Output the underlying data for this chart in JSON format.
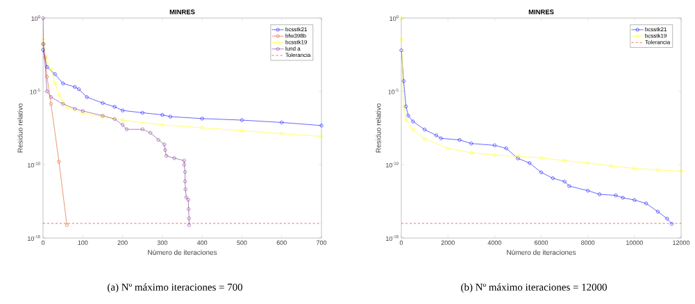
{
  "chart_data": [
    {
      "type": "line",
      "title": "MINRES",
      "xlabel": "Número de iteraciones",
      "ylabel": "Residuo relativo",
      "log": "y",
      "marker": "circle",
      "line_style": "solid",
      "legend": "top right",
      "xlim": [
        0,
        700
      ],
      "xticks": [
        0,
        100,
        200,
        300,
        400,
        500,
        600,
        700
      ],
      "ylim": [
        1e-15,
        1
      ],
      "yticks": [
        {
          "value": 1e-15,
          "label": "10$^{-15}$"
        },
        {
          "value": 1e-10,
          "label": "10$^{-10}$"
        },
        {
          "value": 1e-05,
          "label": "10$^{-5}$"
        },
        {
          "value": 1,
          "label": "10$^{0}$"
        }
      ],
      "series": [
        {
          "name": "bcsstk21",
          "color": "#0000ff",
          "x": [
            0,
            10,
            30,
            50,
            80,
            90,
            110,
            150,
            180,
            200,
            250,
            300,
            320,
            400,
            500,
            600,
            700
          ],
          "values": [
            0.0068,
            0.00045,
            0.00015,
            3.5e-05,
            2e-05,
            1.4e-05,
            4.1e-06,
            1.6e-06,
            8.9e-07,
            5e-07,
            3.5e-07,
            2.5e-07,
            1.9e-07,
            1.4e-07,
            1.1e-07,
            7.6e-08,
            4.7e-08
          ]
        },
        {
          "name": "bfw398b",
          "color": "#d95319",
          "x": [
            0,
            5,
            10,
            20,
            40,
            60
          ],
          "values": [
            0.017,
            0.002,
            0.0001,
            1.4e-06,
            1.6e-10,
            7.6e-15
          ]
        },
        {
          "name": "bcsstk19",
          "color": "#ffff00",
          "x": [
            0,
            10,
            20,
            30,
            40,
            50,
            60,
            100,
            150,
            200,
            300,
            400,
            500,
            600,
            700
          ],
          "values": [
            0.037,
            0.00093,
            0.00032,
            3.5e-05,
            5.8e-06,
            2e-06,
            7.9e-07,
            3.2e-07,
            1.9e-07,
            1.1e-07,
            5.2e-08,
            3.3e-08,
            2.1e-08,
            1.3e-08,
            8.5e-09
          ]
        },
        {
          "name": "lund a",
          "color": "#7e2f8e",
          "x": [
            0,
            1,
            10,
            20,
            50,
            80,
            100,
            150,
            180,
            200,
            210,
            250,
            270,
            290,
            305,
            307,
            310,
            330,
            355,
            355,
            357,
            357,
            358,
            360,
            365,
            366,
            367,
            367
          ],
          "values": [
            1,
            0.017,
            1e-05,
            4.1e-06,
            1.4e-06,
            6.6e-07,
            4.6e-07,
            2.2e-07,
            1.3e-07,
            5.2e-08,
            2.6e-08,
            2.6e-08,
            1.5e-08,
            5e-09,
            2.4e-09,
            1e-09,
            4e-10,
            2.8e-10,
            1.9e-10,
            1e-10,
            3.2e-11,
            7.4e-12,
            2.1e-12,
            5.9e-13,
            4.1e-13,
            9.5e-14,
            2.2e-14,
            7.6e-15
          ]
        }
      ],
      "ref_lines": [
        {
          "axis": "y",
          "value": 1e-14,
          "label": "Tolerancia",
          "color": "#ff0000",
          "line_style": "dashed"
        }
      ],
      "annotations": [
        "(a) Nº máximo iteraciones = 700"
      ]
    },
    {
      "type": "line",
      "title": "MINRES",
      "xlabel": "Número de iteraciones",
      "ylabel": "Residuo relativo",
      "log": "y",
      "marker": "circle",
      "line_style": "solid",
      "legend": "top right",
      "xlim": [
        0,
        12000
      ],
      "xticks": [
        0,
        2000,
        4000,
        6000,
        8000,
        10000,
        12000
      ],
      "ylim": [
        1e-15,
        1
      ],
      "yticks": [
        {
          "value": 1e-15,
          "label": "10$^{-15}$"
        },
        {
          "value": 1e-10,
          "label": "10$^{-10}$"
        },
        {
          "value": 1e-05,
          "label": "10$^{-5}$"
        },
        {
          "value": 1,
          "label": "10$^{0}$"
        }
      ],
      "series": [
        {
          "name": "bcsstk21",
          "color": "#0000ff",
          "x": [
            0,
            100,
            200,
            300,
            500,
            1000,
            1500,
            1700,
            2500,
            3000,
            4000,
            4500,
            5000,
            5500,
            6000,
            6500,
            7000,
            7200,
            8000,
            8500,
            9200,
            9500,
            10000,
            10500,
            11000,
            11400,
            11600
          ],
          "values": [
            0.0063,
            5e-05,
            9.3e-07,
            2.2e-07,
            8.9e-08,
            2.5e-08,
            1e-08,
            6.3e-09,
            4.9e-09,
            2.8e-09,
            2.1e-09,
            1.3e-09,
            2.7e-10,
            1.3e-10,
            3e-11,
            1.2e-11,
            7.1e-12,
            3.5e-12,
            1.7e-12,
            9.6e-13,
            8.1e-13,
            5.6e-13,
            3.9e-13,
            2.3e-13,
            6.3e-14,
            2.1e-14,
            9.3e-15
          ]
        },
        {
          "name": "bcsstk19",
          "color": "#ffff00",
          "x": [
            0,
            10,
            100,
            200,
            500,
            1000,
            2000,
            3000,
            4000,
            5000,
            6000,
            7000,
            8000,
            9000,
            10000,
            11000,
            12000
          ],
          "values": [
            1,
            0.035,
            9.3e-07,
            1.1e-07,
            2.5e-08,
            5.8e-09,
            1.3e-09,
            6.6e-10,
            4.6e-10,
            3.8e-10,
            2.9e-10,
            1.9e-10,
            1.3e-10,
            8.1e-11,
            5.6e-11,
            4.4e-11,
            3.6e-11
          ]
        }
      ],
      "ref_lines": [
        {
          "axis": "y",
          "value": 1e-14,
          "label": "Tolerancia",
          "color": "#ff0000",
          "line_style": "dashed"
        }
      ],
      "annotations": [
        "(b) Nº máximo iteraciones = 12000"
      ]
    }
  ]
}
